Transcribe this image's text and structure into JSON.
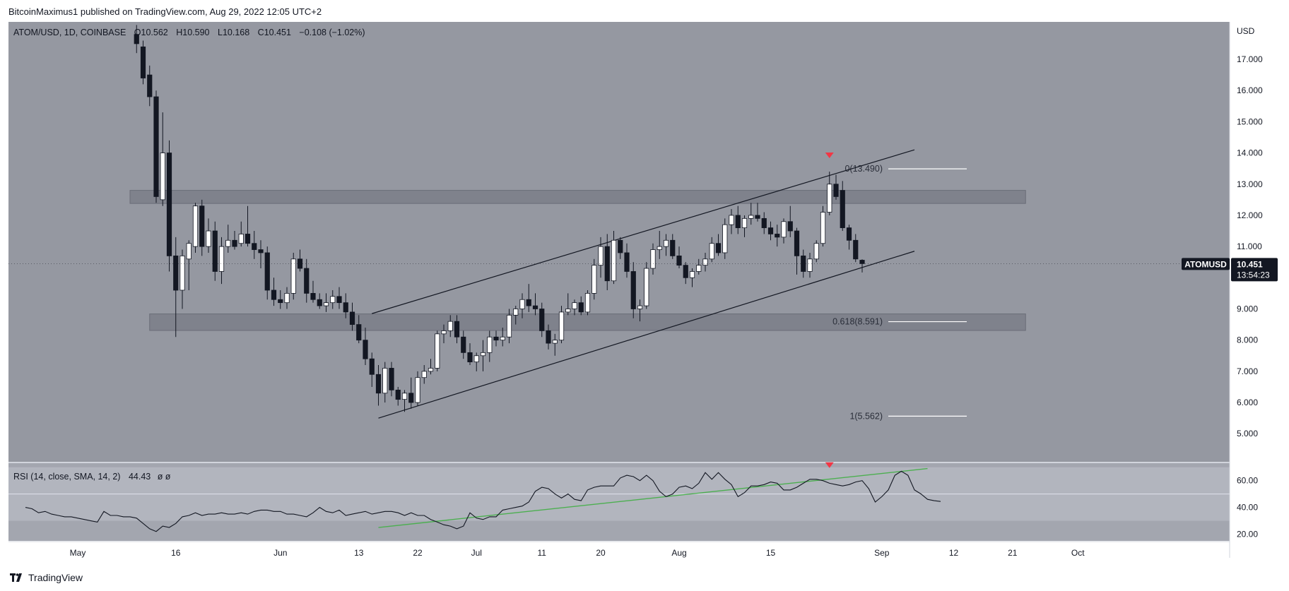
{
  "header": {
    "text": "BitcoinMaximus1 published on TradingView.com, Aug 29, 2022 12:05 UTC+2"
  },
  "legend": {
    "symbol": "ATOM/USD, 1D, COINBASE",
    "o_key": "O",
    "o": "10.562",
    "h_key": "H",
    "h": "10.590",
    "l_key": "L",
    "l": "10.168",
    "c_key": "C",
    "c": "10.451",
    "chg": "−0.108 (−1.02%)"
  },
  "rsi_legend": {
    "label": "RSI (14, close, SMA, 14, 2)",
    "value": "44.43",
    "extra": "ø ø"
  },
  "price_tag": {
    "symbol": "ATOMUSD",
    "price": "10.451",
    "countdown": "13:54:23"
  },
  "brand": {
    "name": "TradingView",
    "logo_icon": "tradingview-logo-icon"
  },
  "colors": {
    "chart_bg": "#9598a1",
    "rsi_bg": "#b2b5be",
    "zone": "#787b86",
    "up_candle": "#ffffff",
    "down_candle": "#131722",
    "marker": "#f23645",
    "rsi_trend": "#4caf50",
    "fib_line": "#ffffff"
  },
  "chart_data": [
    {
      "type": "candlestick",
      "title": "ATOM/USD, 1D, COINBASE",
      "yunit": "USD",
      "ylim": [
        4.1,
        18.2
      ],
      "y_ticks": [
        5,
        6,
        7,
        8,
        9,
        10,
        11,
        12,
        13,
        14,
        15,
        16,
        17
      ],
      "y_tick_labels": [
        "5.000",
        "6.000",
        "7.000",
        "8.000",
        "9.000",
        "10.000",
        "11.000",
        "12.000",
        "13.000",
        "14.000",
        "15.000",
        "16.000",
        "17.000"
      ],
      "x_ticks": [
        {
          "day": 0,
          "label": "May"
        },
        {
          "day": 15,
          "label": "16"
        },
        {
          "day": 31,
          "label": "Jun"
        },
        {
          "day": 43,
          "label": "13"
        },
        {
          "day": 52,
          "label": "22"
        },
        {
          "day": 61,
          "label": "Jul"
        },
        {
          "day": 71,
          "label": "11"
        },
        {
          "day": 80,
          "label": "20"
        },
        {
          "day": 92,
          "label": "Aug"
        },
        {
          "day": 106,
          "label": "15"
        },
        {
          "day": 123,
          "label": "Sep"
        },
        {
          "day": 134,
          "label": "12"
        },
        {
          "day": 143,
          "label": "21"
        },
        {
          "day": 153,
          "label": "Oct"
        }
      ],
      "candles": [
        {
          "d": 9,
          "o": 17.8,
          "h": 18.1,
          "l": 17.2,
          "c": 17.5
        },
        {
          "d": 10,
          "o": 17.4,
          "h": 17.6,
          "l": 16.2,
          "c": 16.4
        },
        {
          "d": 11,
          "o": 16.5,
          "h": 16.8,
          "l": 15.5,
          "c": 15.8
        },
        {
          "d": 12,
          "o": 15.8,
          "h": 16.0,
          "l": 12.4,
          "c": 12.6
        },
        {
          "d": 13,
          "o": 12.5,
          "h": 15.3,
          "l": 12.3,
          "c": 14.0
        },
        {
          "d": 14,
          "o": 14.0,
          "h": 14.4,
          "l": 10.2,
          "c": 10.7
        },
        {
          "d": 15,
          "o": 10.7,
          "h": 11.3,
          "l": 8.1,
          "c": 9.6
        },
        {
          "d": 16,
          "o": 9.6,
          "h": 10.9,
          "l": 9.0,
          "c": 10.7
        },
        {
          "d": 17,
          "o": 10.6,
          "h": 11.2,
          "l": 9.6,
          "c": 11.1
        },
        {
          "d": 18,
          "o": 11.0,
          "h": 12.4,
          "l": 10.8,
          "c": 12.3
        },
        {
          "d": 19,
          "o": 12.3,
          "h": 12.5,
          "l": 10.7,
          "c": 11.0
        },
        {
          "d": 20,
          "o": 11.0,
          "h": 11.9,
          "l": 10.8,
          "c": 11.5
        },
        {
          "d": 21,
          "o": 11.5,
          "h": 11.8,
          "l": 9.9,
          "c": 10.2
        },
        {
          "d": 22,
          "o": 10.2,
          "h": 11.3,
          "l": 9.8,
          "c": 11.0
        },
        {
          "d": 23,
          "o": 11.0,
          "h": 11.7,
          "l": 10.8,
          "c": 11.2
        },
        {
          "d": 24,
          "o": 11.2,
          "h": 11.5,
          "l": 10.9,
          "c": 11.0
        },
        {
          "d": 25,
          "o": 11.1,
          "h": 11.8,
          "l": 11.0,
          "c": 11.4
        },
        {
          "d": 26,
          "o": 11.4,
          "h": 12.3,
          "l": 11.0,
          "c": 11.1
        },
        {
          "d": 27,
          "o": 11.1,
          "h": 11.5,
          "l": 10.6,
          "c": 10.9
        },
        {
          "d": 28,
          "o": 10.9,
          "h": 11.2,
          "l": 10.3,
          "c": 10.8
        },
        {
          "d": 29,
          "o": 10.8,
          "h": 11.0,
          "l": 9.3,
          "c": 9.6
        },
        {
          "d": 30,
          "o": 9.6,
          "h": 10.0,
          "l": 9.1,
          "c": 9.3
        },
        {
          "d": 31,
          "o": 9.3,
          "h": 9.6,
          "l": 9.0,
          "c": 9.2
        },
        {
          "d": 32,
          "o": 9.2,
          "h": 9.7,
          "l": 9.0,
          "c": 9.5
        },
        {
          "d": 33,
          "o": 9.5,
          "h": 10.8,
          "l": 9.3,
          "c": 10.6
        },
        {
          "d": 34,
          "o": 10.6,
          "h": 10.9,
          "l": 10.2,
          "c": 10.3
        },
        {
          "d": 35,
          "o": 10.3,
          "h": 10.6,
          "l": 9.2,
          "c": 9.5
        },
        {
          "d": 36,
          "o": 9.5,
          "h": 9.9,
          "l": 9.2,
          "c": 9.3
        },
        {
          "d": 37,
          "o": 9.3,
          "h": 9.5,
          "l": 9.0,
          "c": 9.1
        },
        {
          "d": 38,
          "o": 9.1,
          "h": 9.5,
          "l": 8.9,
          "c": 9.2
        },
        {
          "d": 39,
          "o": 9.2,
          "h": 9.6,
          "l": 9.0,
          "c": 9.4
        },
        {
          "d": 40,
          "o": 9.4,
          "h": 9.7,
          "l": 9.0,
          "c": 9.2
        },
        {
          "d": 41,
          "o": 9.2,
          "h": 9.5,
          "l": 8.7,
          "c": 8.9
        },
        {
          "d": 42,
          "o": 8.9,
          "h": 9.2,
          "l": 8.3,
          "c": 8.5
        },
        {
          "d": 43,
          "o": 8.5,
          "h": 8.8,
          "l": 7.9,
          "c": 8.0
        },
        {
          "d": 44,
          "o": 8.0,
          "h": 8.4,
          "l": 7.2,
          "c": 7.4
        },
        {
          "d": 45,
          "o": 7.4,
          "h": 7.6,
          "l": 6.5,
          "c": 6.9
        },
        {
          "d": 46,
          "o": 6.9,
          "h": 7.2,
          "l": 5.9,
          "c": 6.3
        },
        {
          "d": 47,
          "o": 6.3,
          "h": 7.3,
          "l": 6.0,
          "c": 7.1
        },
        {
          "d": 48,
          "o": 7.1,
          "h": 7.3,
          "l": 6.2,
          "c": 6.4
        },
        {
          "d": 49,
          "o": 6.4,
          "h": 6.5,
          "l": 5.9,
          "c": 6.1
        },
        {
          "d": 50,
          "o": 6.1,
          "h": 6.4,
          "l": 5.7,
          "c": 6.3
        },
        {
          "d": 51,
          "o": 6.3,
          "h": 6.8,
          "l": 5.8,
          "c": 6.0
        },
        {
          "d": 52,
          "o": 6.0,
          "h": 7.0,
          "l": 5.9,
          "c": 6.8
        },
        {
          "d": 53,
          "o": 6.8,
          "h": 7.2,
          "l": 6.6,
          "c": 7.0
        },
        {
          "d": 54,
          "o": 7.0,
          "h": 7.4,
          "l": 6.9,
          "c": 7.1
        },
        {
          "d": 55,
          "o": 7.1,
          "h": 8.3,
          "l": 7.0,
          "c": 8.2
        },
        {
          "d": 56,
          "o": 8.2,
          "h": 8.5,
          "l": 7.9,
          "c": 8.3
        },
        {
          "d": 57,
          "o": 8.3,
          "h": 8.8,
          "l": 8.1,
          "c": 8.6
        },
        {
          "d": 58,
          "o": 8.6,
          "h": 8.8,
          "l": 7.9,
          "c": 8.1
        },
        {
          "d": 59,
          "o": 8.1,
          "h": 8.3,
          "l": 7.4,
          "c": 7.6
        },
        {
          "d": 60,
          "o": 7.6,
          "h": 7.9,
          "l": 7.2,
          "c": 7.3
        },
        {
          "d": 61,
          "o": 7.3,
          "h": 7.6,
          "l": 7.0,
          "c": 7.5
        },
        {
          "d": 62,
          "o": 7.5,
          "h": 8.0,
          "l": 7.0,
          "c": 7.6
        },
        {
          "d": 63,
          "o": 7.6,
          "h": 8.3,
          "l": 7.3,
          "c": 8.1
        },
        {
          "d": 64,
          "o": 8.1,
          "h": 8.3,
          "l": 7.8,
          "c": 8.0
        },
        {
          "d": 65,
          "o": 8.0,
          "h": 8.4,
          "l": 7.8,
          "c": 8.1
        },
        {
          "d": 66,
          "o": 8.1,
          "h": 9.0,
          "l": 7.9,
          "c": 8.8
        },
        {
          "d": 67,
          "o": 8.8,
          "h": 9.1,
          "l": 8.5,
          "c": 9.0
        },
        {
          "d": 68,
          "o": 9.0,
          "h": 9.5,
          "l": 8.7,
          "c": 9.3
        },
        {
          "d": 69,
          "o": 9.3,
          "h": 9.8,
          "l": 8.9,
          "c": 9.1
        },
        {
          "d": 70,
          "o": 9.1,
          "h": 9.5,
          "l": 8.8,
          "c": 9.0
        },
        {
          "d": 71,
          "o": 9.0,
          "h": 9.2,
          "l": 8.1,
          "c": 8.3
        },
        {
          "d": 72,
          "o": 8.3,
          "h": 8.5,
          "l": 7.7,
          "c": 7.9
        },
        {
          "d": 73,
          "o": 7.9,
          "h": 8.2,
          "l": 7.5,
          "c": 8.0
        },
        {
          "d": 74,
          "o": 8.0,
          "h": 9.1,
          "l": 7.9,
          "c": 8.9
        },
        {
          "d": 75,
          "o": 8.9,
          "h": 9.5,
          "l": 8.8,
          "c": 9.0
        },
        {
          "d": 76,
          "o": 9.0,
          "h": 9.3,
          "l": 8.8,
          "c": 9.2
        },
        {
          "d": 77,
          "o": 9.2,
          "h": 9.4,
          "l": 8.8,
          "c": 8.9
        },
        {
          "d": 78,
          "o": 8.9,
          "h": 9.6,
          "l": 8.8,
          "c": 9.5
        },
        {
          "d": 79,
          "o": 9.5,
          "h": 10.6,
          "l": 9.3,
          "c": 10.4
        },
        {
          "d": 80,
          "o": 10.4,
          "h": 11.3,
          "l": 10.0,
          "c": 11.0
        },
        {
          "d": 81,
          "o": 11.0,
          "h": 11.4,
          "l": 9.6,
          "c": 9.9
        },
        {
          "d": 82,
          "o": 9.9,
          "h": 11.5,
          "l": 9.8,
          "c": 11.2
        },
        {
          "d": 83,
          "o": 11.2,
          "h": 11.3,
          "l": 10.6,
          "c": 10.8
        },
        {
          "d": 84,
          "o": 10.8,
          "h": 11.1,
          "l": 10.0,
          "c": 10.2
        },
        {
          "d": 85,
          "o": 10.2,
          "h": 10.5,
          "l": 8.7,
          "c": 9.0
        },
        {
          "d": 86,
          "o": 9.0,
          "h": 9.3,
          "l": 8.6,
          "c": 9.1
        },
        {
          "d": 87,
          "o": 9.1,
          "h": 10.5,
          "l": 9.0,
          "c": 10.3
        },
        {
          "d": 88,
          "o": 10.3,
          "h": 11.1,
          "l": 10.1,
          "c": 10.9
        },
        {
          "d": 89,
          "o": 10.9,
          "h": 11.5,
          "l": 10.6,
          "c": 11.0
        },
        {
          "d": 90,
          "o": 11.0,
          "h": 11.4,
          "l": 10.7,
          "c": 11.2
        },
        {
          "d": 91,
          "o": 11.2,
          "h": 11.4,
          "l": 10.6,
          "c": 10.7
        },
        {
          "d": 92,
          "o": 10.7,
          "h": 11.0,
          "l": 10.3,
          "c": 10.4
        },
        {
          "d": 93,
          "o": 10.4,
          "h": 10.5,
          "l": 9.8,
          "c": 10.0
        },
        {
          "d": 94,
          "o": 10.0,
          "h": 10.3,
          "l": 9.7,
          "c": 10.2
        },
        {
          "d": 95,
          "o": 10.2,
          "h": 10.6,
          "l": 10.1,
          "c": 10.4
        },
        {
          "d": 96,
          "o": 10.4,
          "h": 10.8,
          "l": 10.2,
          "c": 10.6
        },
        {
          "d": 97,
          "o": 10.6,
          "h": 11.3,
          "l": 10.5,
          "c": 11.1
        },
        {
          "d": 98,
          "o": 11.1,
          "h": 11.4,
          "l": 10.7,
          "c": 10.8
        },
        {
          "d": 99,
          "o": 10.8,
          "h": 11.9,
          "l": 10.6,
          "c": 11.7
        },
        {
          "d": 100,
          "o": 11.7,
          "h": 12.2,
          "l": 11.4,
          "c": 12.0
        },
        {
          "d": 101,
          "o": 12.0,
          "h": 12.3,
          "l": 11.4,
          "c": 11.6
        },
        {
          "d": 102,
          "o": 11.6,
          "h": 12.0,
          "l": 11.3,
          "c": 11.9
        },
        {
          "d": 103,
          "o": 11.9,
          "h": 12.4,
          "l": 11.7,
          "c": 12.0
        },
        {
          "d": 104,
          "o": 12.0,
          "h": 12.4,
          "l": 11.8,
          "c": 11.9
        },
        {
          "d": 105,
          "o": 11.9,
          "h": 12.1,
          "l": 11.4,
          "c": 11.6
        },
        {
          "d": 106,
          "o": 11.6,
          "h": 11.8,
          "l": 11.2,
          "c": 11.4
        },
        {
          "d": 107,
          "o": 11.4,
          "h": 11.7,
          "l": 11.0,
          "c": 11.3
        },
        {
          "d": 108,
          "o": 11.3,
          "h": 11.9,
          "l": 11.1,
          "c": 11.8
        },
        {
          "d": 109,
          "o": 11.8,
          "h": 12.3,
          "l": 11.3,
          "c": 11.5
        },
        {
          "d": 110,
          "o": 11.5,
          "h": 11.6,
          "l": 10.1,
          "c": 10.7
        },
        {
          "d": 111,
          "o": 10.7,
          "h": 10.9,
          "l": 10.0,
          "c": 10.2
        },
        {
          "d": 112,
          "o": 10.2,
          "h": 10.8,
          "l": 10.0,
          "c": 10.6
        },
        {
          "d": 113,
          "o": 10.6,
          "h": 11.2,
          "l": 10.5,
          "c": 11.1
        },
        {
          "d": 114,
          "o": 11.1,
          "h": 12.3,
          "l": 11.0,
          "c": 12.1
        },
        {
          "d": 115,
          "o": 12.1,
          "h": 13.4,
          "l": 12.0,
          "c": 13.0
        },
        {
          "d": 116,
          "o": 13.0,
          "h": 13.3,
          "l": 12.5,
          "c": 12.6
        },
        {
          "d": 117,
          "o": 12.8,
          "h": 13.1,
          "l": 11.5,
          "c": 11.6
        },
        {
          "d": 118,
          "o": 11.6,
          "h": 11.7,
          "l": 10.9,
          "c": 11.2
        },
        {
          "d": 119,
          "o": 11.2,
          "h": 11.4,
          "l": 10.5,
          "c": 10.6
        },
        {
          "d": 120,
          "o": 10.562,
          "h": 10.59,
          "l": 10.168,
          "c": 10.451
        }
      ],
      "zones": [
        {
          "name": "resistance-zone",
          "from_day": 8,
          "to_day": 145,
          "low": 12.38,
          "high": 12.8
        },
        {
          "name": "support-zone",
          "from_day": 11,
          "to_day": 145,
          "low": 8.31,
          "high": 8.84
        }
      ],
      "channel": [
        {
          "name": "channel-upper-line",
          "x1": 45,
          "y1": 8.85,
          "x2": 128,
          "y2": 14.1
        },
        {
          "name": "channel-lower-line",
          "x1": 46,
          "y1": 5.5,
          "x2": 128,
          "y2": 10.85
        }
      ],
      "fib_levels": [
        {
          "label": "0(13.490)",
          "value": 13.49
        },
        {
          "label": "0.618(8.591)",
          "value": 8.591
        },
        {
          "label": "1(5.562)",
          "value": 5.562
        }
      ],
      "fib_range_days": [
        124,
        136
      ],
      "marker": {
        "day": 115,
        "value": 13.9
      },
      "axis_label": "USD"
    },
    {
      "type": "line",
      "title": "RSI (14, close, SMA, 14, 2)",
      "ylim": [
        15,
        73
      ],
      "y_ticks": [
        20,
        40,
        60
      ],
      "y_tick_labels": [
        "20.00",
        "40.00",
        "60.00"
      ],
      "band": [
        30,
        70
      ],
      "midline": 50,
      "x_start_day": -8,
      "values": [
        40,
        39,
        36,
        37,
        35,
        34,
        33,
        33,
        32,
        31,
        30,
        29,
        37,
        34,
        34,
        33,
        33,
        32,
        28,
        24,
        22,
        26,
        25,
        28,
        33,
        34,
        36,
        34,
        35,
        35,
        36,
        35,
        35,
        36,
        35,
        37,
        38,
        38,
        37,
        37,
        35,
        35,
        34,
        33,
        36,
        40,
        37,
        36,
        38,
        34,
        35,
        36,
        37,
        35,
        36,
        37,
        37,
        36,
        34,
        36,
        34,
        34,
        31,
        29,
        27,
        26,
        24,
        26,
        36,
        32,
        31,
        33,
        33,
        38,
        39,
        40,
        41,
        44,
        52,
        55,
        54,
        50,
        47,
        50,
        46,
        45,
        53,
        55,
        56,
        56,
        56,
        62,
        64,
        63,
        60,
        64,
        60,
        52,
        48,
        50,
        55,
        56,
        54,
        58,
        66,
        61,
        66,
        61,
        57,
        48,
        51,
        56,
        56,
        57,
        59,
        58,
        53,
        53,
        55,
        58,
        61,
        61,
        60,
        58,
        57,
        56,
        57,
        59,
        60,
        54,
        44,
        48,
        53,
        64,
        67,
        64,
        53,
        50,
        46,
        45,
        44.43
      ],
      "trendline": {
        "x1": 46,
        "y1": 25,
        "x2": 130,
        "y2": 69
      },
      "marker": {
        "day": 115,
        "value": 71
      },
      "value_label": "44.43"
    }
  ]
}
